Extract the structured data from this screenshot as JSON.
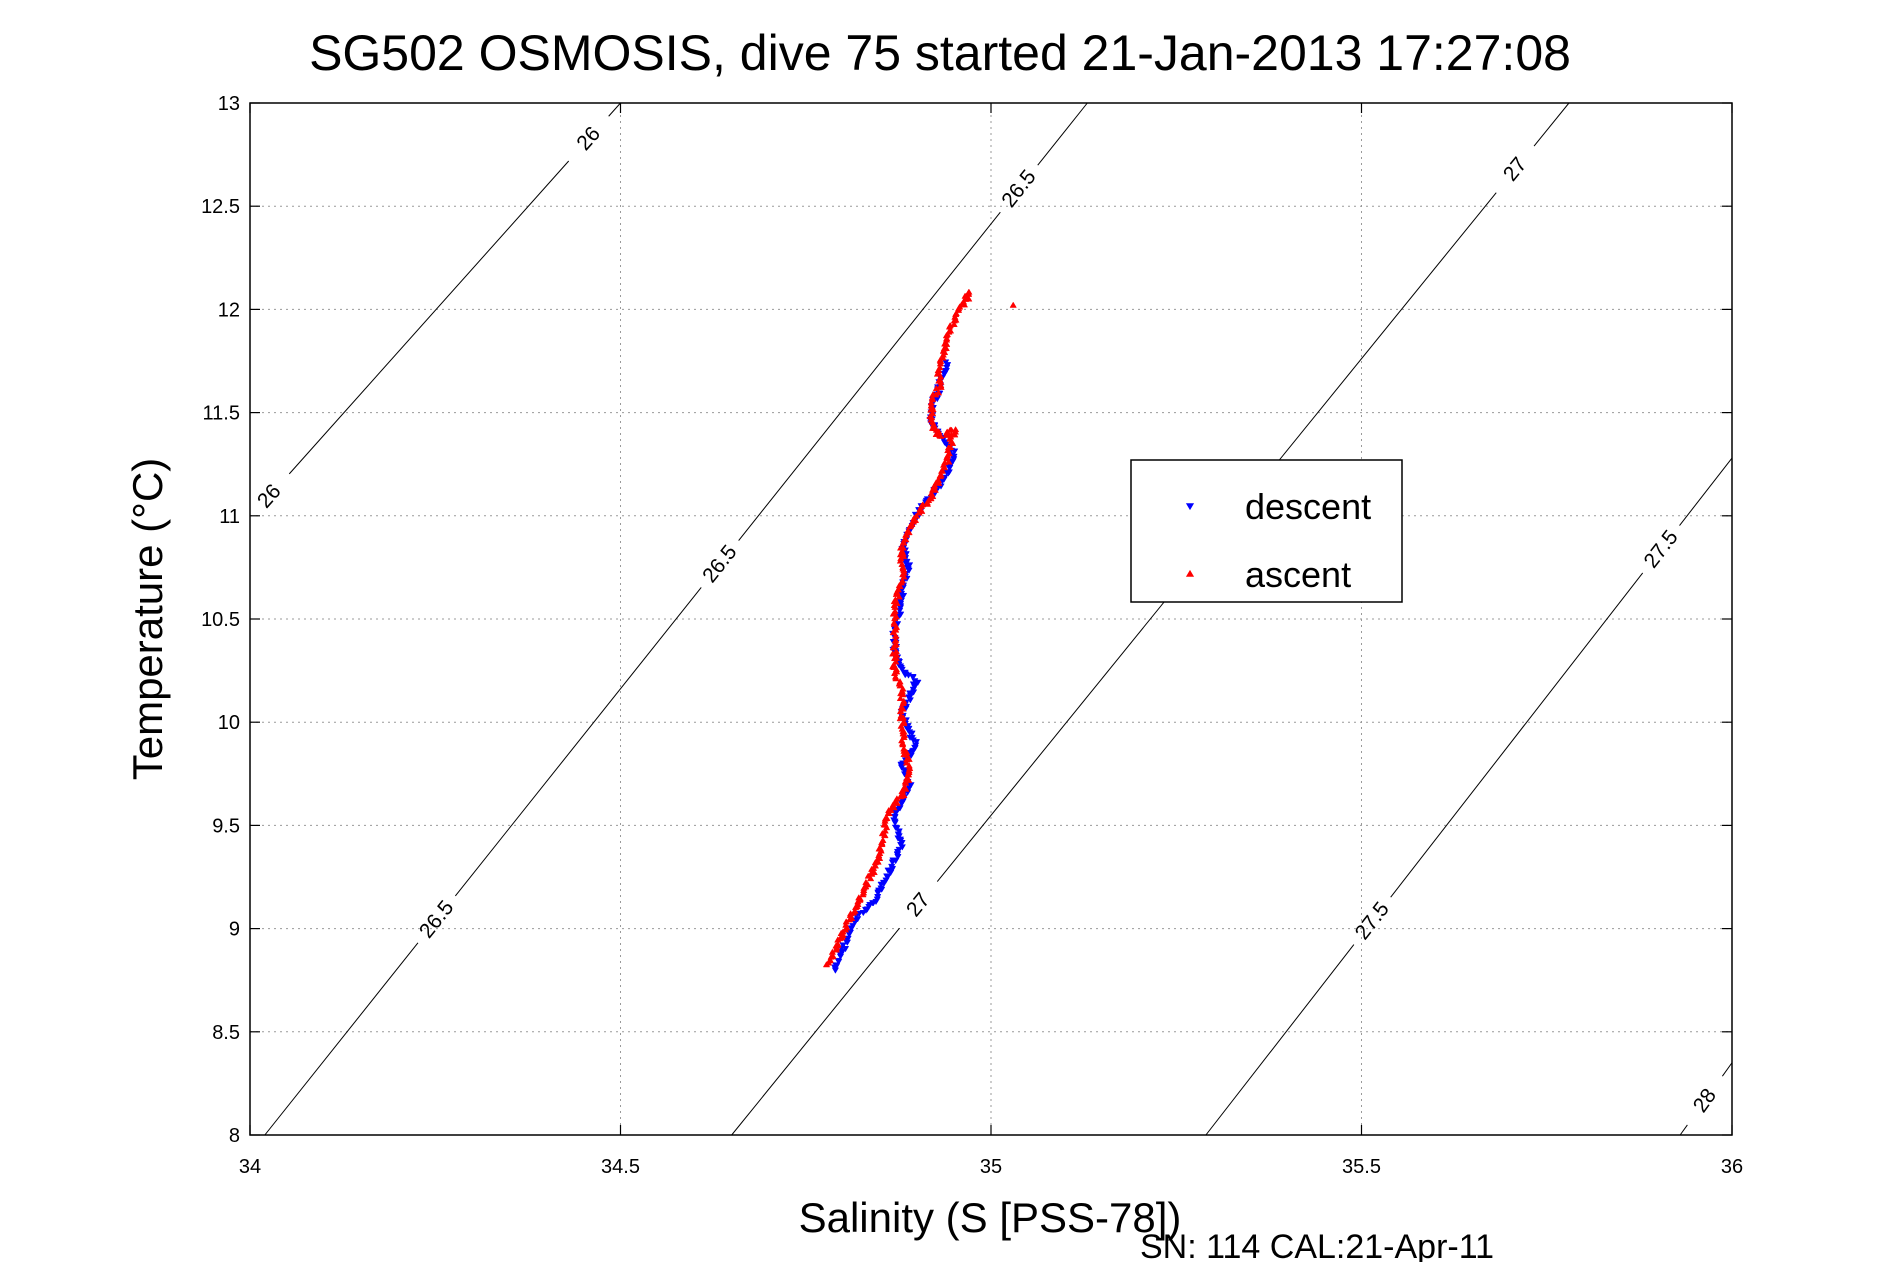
{
  "chart_data": {
    "type": "scatter",
    "title": "SG502 OSMOSIS, dive 75 started 21-Jan-2013 17:27:08",
    "xlabel": "Salinity (S [PSS-78])",
    "ylabel": "Temperature (°C)",
    "footer": "SN: 114  CAL:21-Apr-11",
    "xlim": [
      34,
      36
    ],
    "ylim": [
      8,
      13
    ],
    "x_ticks": [
      34,
      34.5,
      35,
      35.5,
      36
    ],
    "x_tick_labels": [
      "34",
      "34.5",
      "35",
      "35.5",
      "36"
    ],
    "y_ticks": [
      8,
      8.5,
      9,
      9.5,
      10,
      10.5,
      11,
      11.5,
      12,
      12.5,
      13
    ],
    "y_tick_labels": [
      "8",
      "8.5",
      "9",
      "9.5",
      "10",
      "10.5",
      "11",
      "11.5",
      "12",
      "12.5",
      "13"
    ],
    "grid": true,
    "legend_position": "right",
    "density_contours": [
      {
        "value": 26,
        "x": [
          34.0,
          34.5
        ],
        "y": [
          10.99,
          13.0
        ],
        "labels": [
          {
            "text": "26",
            "x": 34.04,
            "y": 11.05
          },
          {
            "text": "26",
            "x": 34.45,
            "y": 12.85
          }
        ]
      },
      {
        "value": 26.5,
        "x": [
          34.02,
          35.13
        ],
        "y": [
          8.0,
          13.0
        ],
        "labels": [
          {
            "text": "26.5",
            "x": 34.25,
            "y": 9.05
          },
          {
            "text": "26.5",
            "x": 34.64,
            "y": 10.75
          },
          {
            "text": "26.5",
            "x": 35.05,
            "y": 12.55
          }
        ]
      },
      {
        "value": 27,
        "x": [
          34.65,
          35.78
        ],
        "y": [
          8.0,
          13.0
        ],
        "labels": [
          {
            "text": "27",
            "x": 34.89,
            "y": 9.15
          },
          {
            "text": "27",
            "x": 35.7,
            "y": 12.7
          }
        ]
      },
      {
        "value": 27.5,
        "x": [
          35.29,
          36.0
        ],
        "y": [
          8.0,
          11.28
        ],
        "labels": [
          {
            "text": "27.5",
            "x": 35.51,
            "y": 9.05
          },
          {
            "text": "27.5",
            "x": 35.9,
            "y": 10.85
          }
        ]
      },
      {
        "value": 28,
        "x": [
          35.93,
          36.0
        ],
        "y": [
          8.0,
          8.35
        ],
        "labels": [
          {
            "text": "28",
            "x": 35.97,
            "y": 8.15
          }
        ]
      }
    ],
    "series": [
      {
        "name": "descent",
        "color": "#0000ff",
        "marker": "triangle-down",
        "x": [
          34.79,
          34.8,
          34.81,
          34.82,
          34.84,
          34.86,
          34.88,
          34.87,
          34.89,
          34.88,
          34.9,
          34.89,
          34.88,
          34.89,
          34.9,
          34.88,
          34.87,
          34.87,
          34.88,
          34.88,
          34.89,
          34.88,
          34.89,
          34.9,
          34.92,
          34.94,
          34.95,
          34.94,
          34.93,
          34.92,
          34.92,
          34.93,
          34.93,
          34.94,
          34.94,
          34.94
        ],
        "y": [
          8.8,
          8.9,
          8.98,
          9.06,
          9.12,
          9.25,
          9.4,
          9.55,
          9.7,
          9.8,
          9.88,
          9.95,
          10.05,
          10.12,
          10.2,
          10.25,
          10.35,
          10.45,
          10.55,
          10.65,
          10.75,
          10.85,
          10.92,
          11.0,
          11.1,
          11.2,
          11.3,
          11.35,
          11.4,
          11.45,
          11.55,
          11.6,
          11.65,
          11.7,
          11.72,
          11.75
        ]
      },
      {
        "name": "ascent",
        "color": "#ff0000",
        "marker": "triangle-up",
        "x": [
          34.78,
          34.79,
          34.8,
          34.81,
          34.83,
          34.85,
          34.86,
          34.88,
          34.89,
          34.88,
          34.88,
          34.87,
          34.87,
          34.87,
          34.88,
          34.88,
          34.89,
          34.9,
          34.92,
          34.94,
          34.95,
          34.93,
          34.92,
          34.92,
          34.93,
          34.93,
          34.94,
          34.95,
          34.96,
          34.97,
          34.97,
          35.03
        ],
        "y": [
          8.82,
          8.9,
          8.98,
          9.05,
          9.2,
          9.35,
          9.55,
          9.65,
          9.75,
          9.95,
          10.15,
          10.25,
          10.4,
          10.55,
          10.7,
          10.85,
          10.95,
          11.0,
          11.1,
          11.25,
          11.42,
          11.38,
          11.45,
          11.55,
          11.62,
          11.7,
          11.85,
          11.95,
          12.02,
          12.08,
          12.05,
          12.02
        ]
      }
    ]
  }
}
